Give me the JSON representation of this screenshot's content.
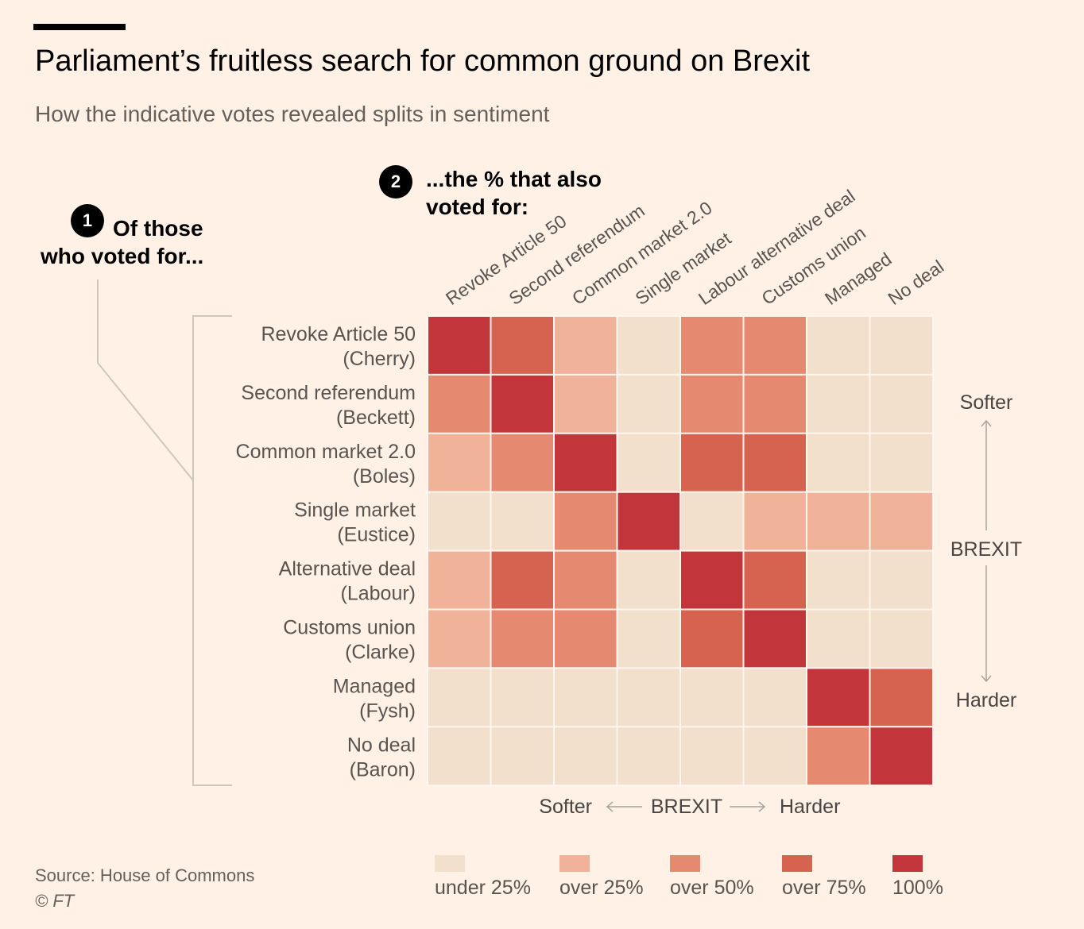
{
  "header": {
    "title": "Parliament’s fruitless search for common ground on Brexit",
    "subtitle": "How the indicative votes revealed splits in sentiment"
  },
  "annotations": {
    "step1_number": "1",
    "step1_line1": "Of those",
    "step1_line2": "who voted for...",
    "step2_number": "2",
    "step2_line1": "...the % that also",
    "step2_line2": "voted for:"
  },
  "chart_data": {
    "type": "heatmap",
    "columns": [
      "Revoke Article 50",
      "Second referendum",
      "Common market 2.0",
      "Single market",
      "Labour alternative deal",
      "Customs union",
      "Managed",
      "No deal"
    ],
    "rows": [
      {
        "name": "Revoke Article 50",
        "sponsor": "(Cherry)"
      },
      {
        "name": "Second referendum",
        "sponsor": "(Beckett)"
      },
      {
        "name": "Common market 2.0",
        "sponsor": "(Boles)"
      },
      {
        "name": "Single market",
        "sponsor": "(Eustice)"
      },
      {
        "name": "Alternative deal",
        "sponsor": "(Labour)"
      },
      {
        "name": "Customs union",
        "sponsor": "(Clarke)"
      },
      {
        "name": "Managed",
        "sponsor": "(Fysh)"
      },
      {
        "name": "No deal",
        "sponsor": "(Baron)"
      }
    ],
    "levels": [
      [
        4,
        3,
        1,
        0,
        2,
        2,
        0,
        0
      ],
      [
        2,
        4,
        1,
        0,
        2,
        2,
        0,
        0
      ],
      [
        1,
        2,
        4,
        0,
        3,
        3,
        0,
        0
      ],
      [
        0,
        0,
        2,
        4,
        0,
        1,
        1,
        1
      ],
      [
        1,
        3,
        2,
        0,
        4,
        3,
        0,
        0
      ],
      [
        1,
        2,
        2,
        0,
        3,
        4,
        0,
        0
      ],
      [
        0,
        0,
        0,
        0,
        0,
        0,
        4,
        3
      ],
      [
        0,
        0,
        0,
        0,
        0,
        0,
        2,
        4
      ]
    ],
    "legend": [
      {
        "label": "under 25%",
        "color": "#f2dfcc"
      },
      {
        "label": "over 25%",
        "color": "#f0b39a"
      },
      {
        "label": "over 50%",
        "color": "#e58a70"
      },
      {
        "label": "over 75%",
        "color": "#d66250"
      },
      {
        "label": "100%",
        "color": "#c1353b"
      }
    ],
    "x_axis": {
      "left": "Softer",
      "center": "BREXIT",
      "right": "Harder"
    },
    "y_axis": {
      "top": "Softer",
      "center": "BREXIT",
      "bottom": "Harder"
    }
  },
  "footer": {
    "source": "Source: House of Commons",
    "credit": "© FT"
  }
}
